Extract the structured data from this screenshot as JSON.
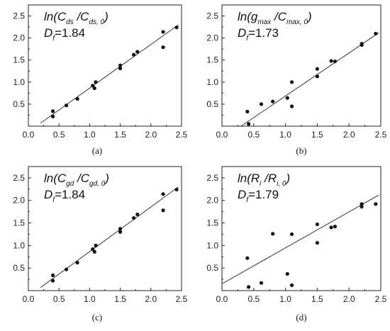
{
  "chart_data": [
    {
      "type": "scatter",
      "caption": "(a)",
      "annotation": {
        "prefix": "ln(C",
        "sub1": "ds",
        "mid": " /C",
        "sub2": "ds, 0",
        "suffix": ")"
      },
      "df_label": {
        "letter": "D",
        "sub": "f",
        "value": "=1.84"
      },
      "xlim": [
        0.0,
        2.5
      ],
      "ylim": [
        0.0,
        2.75
      ],
      "xticks": [
        "0.0",
        "0.5",
        "1.0",
        "1.5",
        "2.0",
        "2.5"
      ],
      "yticks": [
        "0.5",
        "1.0",
        "1.5",
        "2.0",
        "2.5"
      ],
      "fit": {
        "x": [
          0.2,
          2.45
        ],
        "y": [
          0.07,
          2.3
        ]
      },
      "points": [
        {
          "x": 0.4,
          "y": 0.34
        },
        {
          "x": 0.4,
          "y": 0.22
        },
        {
          "x": 0.62,
          "y": 0.47
        },
        {
          "x": 0.8,
          "y": 0.62
        },
        {
          "x": 1.05,
          "y": 0.92
        },
        {
          "x": 1.08,
          "y": 0.86
        },
        {
          "x": 1.1,
          "y": 1.0
        },
        {
          "x": 1.5,
          "y": 1.38
        },
        {
          "x": 1.5,
          "y": 1.31
        },
        {
          "x": 1.72,
          "y": 1.62
        },
        {
          "x": 1.78,
          "y": 1.69
        },
        {
          "x": 2.2,
          "y": 2.14
        },
        {
          "x": 2.2,
          "y": 1.79
        },
        {
          "x": 2.42,
          "y": 2.24
        }
      ]
    },
    {
      "type": "scatter",
      "caption": "(b)",
      "annotation": {
        "prefix": "ln(g",
        "sub1": "max",
        "mid": " /C",
        "sub2": "max, 0",
        "suffix": ")"
      },
      "df_label": {
        "letter": "D",
        "sub": "f",
        "value": "=1.73"
      },
      "xlim": [
        0.0,
        2.5
      ],
      "ylim": [
        0.0,
        2.75
      ],
      "xticks": [
        "0.0",
        "0.5",
        "1.0",
        "1.5",
        "2.0",
        "2.5"
      ],
      "yticks": [
        "0.5",
        "1.0",
        "1.5",
        "2.0",
        "2.5"
      ],
      "fit": {
        "x": [
          0.3,
          2.47
        ],
        "y": [
          0.0,
          2.12
        ]
      },
      "points": [
        {
          "x": 0.4,
          "y": 0.33
        },
        {
          "x": 0.42,
          "y": 0.05
        },
        {
          "x": 0.62,
          "y": 0.5
        },
        {
          "x": 0.8,
          "y": 0.56
        },
        {
          "x": 1.03,
          "y": 0.64
        },
        {
          "x": 1.1,
          "y": 1.0
        },
        {
          "x": 1.1,
          "y": 0.45
        },
        {
          "x": 1.5,
          "y": 1.3
        },
        {
          "x": 1.5,
          "y": 1.13
        },
        {
          "x": 1.72,
          "y": 1.48
        },
        {
          "x": 1.78,
          "y": 1.47
        },
        {
          "x": 2.2,
          "y": 1.87
        },
        {
          "x": 2.2,
          "y": 1.84
        },
        {
          "x": 2.42,
          "y": 2.1
        }
      ]
    },
    {
      "type": "scatter",
      "caption": "(c)",
      "annotation": {
        "prefix": "ln(C",
        "sub1": "gd",
        "mid": " /C",
        "sub2": "gd, 0",
        "suffix": ")"
      },
      "df_label": {
        "letter": "D",
        "sub": "f",
        "value": "=1.84"
      },
      "xlim": [
        0.0,
        2.5
      ],
      "ylim": [
        0.0,
        2.75
      ],
      "xticks": [
        "0.0",
        "0.5",
        "1.0",
        "1.5",
        "2.0",
        "2.5"
      ],
      "yticks": [
        "0.5",
        "1.0",
        "1.5",
        "2.0",
        "2.5"
      ],
      "fit": {
        "x": [
          0.2,
          2.45
        ],
        "y": [
          0.07,
          2.3
        ]
      },
      "points": [
        {
          "x": 0.4,
          "y": 0.34
        },
        {
          "x": 0.4,
          "y": 0.22
        },
        {
          "x": 0.62,
          "y": 0.47
        },
        {
          "x": 0.8,
          "y": 0.62
        },
        {
          "x": 1.05,
          "y": 0.92
        },
        {
          "x": 1.08,
          "y": 0.86
        },
        {
          "x": 1.1,
          "y": 1.0
        },
        {
          "x": 1.5,
          "y": 1.37
        },
        {
          "x": 1.5,
          "y": 1.3
        },
        {
          "x": 1.72,
          "y": 1.61
        },
        {
          "x": 1.78,
          "y": 1.69
        },
        {
          "x": 2.2,
          "y": 2.14
        },
        {
          "x": 2.2,
          "y": 1.78
        },
        {
          "x": 2.42,
          "y": 2.24
        }
      ]
    },
    {
      "type": "scatter",
      "caption": "(d)",
      "annotation": {
        "prefix": "ln(R",
        "sub1": "i",
        "mid": " /R",
        "sub2": "i, 0",
        "suffix": ")"
      },
      "df_label": {
        "letter": "D",
        "sub": "f",
        "value": "=1.79"
      },
      "xlim": [
        0.0,
        2.5
      ],
      "ylim": [
        0.0,
        2.75
      ],
      "xticks": [
        "0.0",
        "0.5",
        "1.0",
        "1.5",
        "2.0",
        "2.5"
      ],
      "yticks": [
        "0.5",
        "1.0",
        "1.5",
        "2.0",
        "2.5"
      ],
      "fit": {
        "x": [
          0.0,
          2.47
        ],
        "y": [
          0.15,
          2.12
        ]
      },
      "points": [
        {
          "x": 0.4,
          "y": 0.72
        },
        {
          "x": 0.42,
          "y": 0.08
        },
        {
          "x": 0.62,
          "y": 0.17
        },
        {
          "x": 0.8,
          "y": 1.26
        },
        {
          "x": 1.03,
          "y": 0.37
        },
        {
          "x": 1.1,
          "y": 1.25
        },
        {
          "x": 1.1,
          "y": 0.12
        },
        {
          "x": 1.5,
          "y": 1.47
        },
        {
          "x": 1.5,
          "y": 1.06
        },
        {
          "x": 1.72,
          "y": 1.4
        },
        {
          "x": 1.78,
          "y": 1.42
        },
        {
          "x": 2.2,
          "y": 1.92
        },
        {
          "x": 2.2,
          "y": 1.86
        },
        {
          "x": 2.42,
          "y": 1.92
        }
      ]
    }
  ]
}
